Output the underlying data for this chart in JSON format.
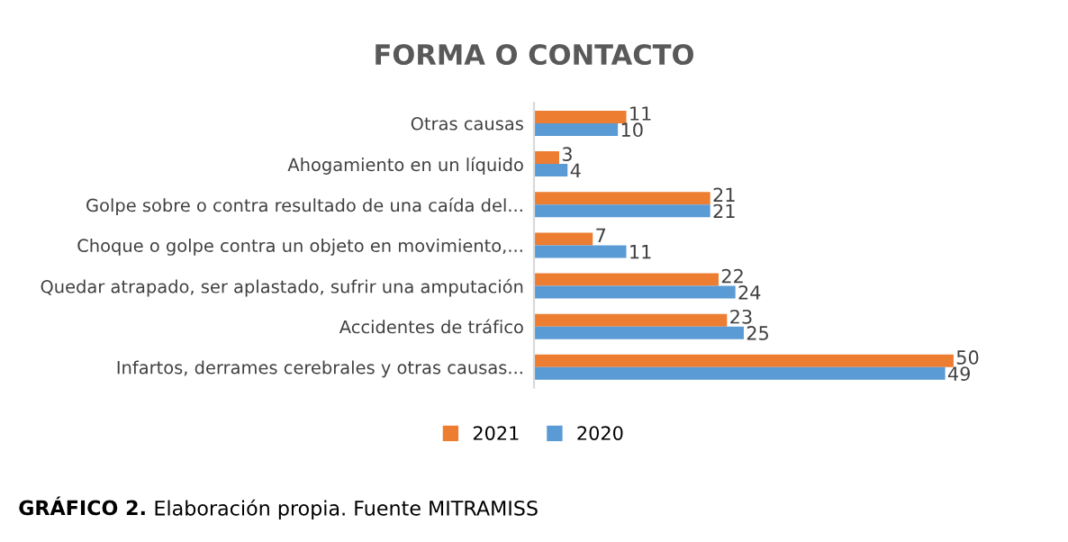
{
  "chart_data": {
    "type": "bar",
    "orientation": "horizontal",
    "title": "FORMA O CONTACTO",
    "categories": [
      "Otras causas",
      "Ahogamiento en un líquido",
      "Golpe sobre o contra resultado de una caída del...",
      "Choque o golpe contra un objeto en movimiento,...",
      "Quedar atrapado, ser aplastado, sufrir una amputación",
      "Accidentes de tráfico",
      "Infartos, derrames cerebrales y otras causas..."
    ],
    "series": [
      {
        "name": "2021",
        "color": "#ed7d31",
        "values": [
          11,
          3,
          21,
          7,
          22,
          23,
          50
        ]
      },
      {
        "name": "2020",
        "color": "#5b9bd5",
        "values": [
          10,
          4,
          21,
          11,
          24,
          25,
          49
        ]
      }
    ],
    "data_labels": true,
    "legend": "bottom",
    "grid": false,
    "annotations": [
      "GRÁFICO 2.",
      "Elaboración propia. Fuente MITRAMISS"
    ]
  }
}
